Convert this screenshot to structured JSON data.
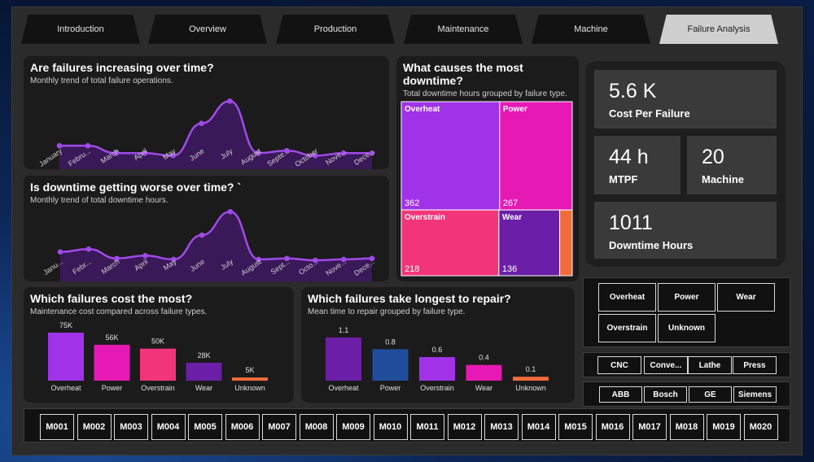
{
  "tabs": [
    "Introduction",
    "Overview",
    "Production",
    "Maintenance",
    "Machine",
    "Failure Analysis"
  ],
  "active_tab": "Failure Analysis",
  "failures_trend": {
    "title": "Are failures increasing over time?",
    "subtitle": "Monthly trend of total failure operations.",
    "tick_labels": [
      "January",
      "Febru...",
      "March",
      "April",
      "May",
      "June",
      "July",
      "August",
      "Septe...",
      "October",
      "Nove...",
      "Dece..."
    ]
  },
  "downtime_trend": {
    "title": "Is downtime getting worse over time? `",
    "subtitle": "Monthly trend of total downtime hours.",
    "tick_labels": [
      "Janu...",
      "Febr...",
      "March",
      "April",
      "May",
      "June",
      "July",
      "August",
      "Sept...",
      "Octo...",
      "Nove...",
      "Dece..."
    ]
  },
  "treemap": {
    "title": "What causes the most downtime?",
    "subtitle": "Total downtime hours grouped by failure type."
  },
  "cost_chart": {
    "title": "Which failures cost the most?",
    "subtitle": "Maintenance cost compared across failure types."
  },
  "repair_chart": {
    "title": "Which failures take longest to repair?",
    "subtitle": "Mean time to repair grouped by failure type."
  },
  "kpis": {
    "cost_per_failure": {
      "value": "5.6 K",
      "label": "Cost Per Failure"
    },
    "mtpf": {
      "value": "44 h",
      "label": "MTPF"
    },
    "machine": {
      "value": "20",
      "label": "Machine"
    },
    "downtime": {
      "value": "1011",
      "label": "Downtime Hours"
    }
  },
  "slicers": {
    "failure_types": [
      "Overheat",
      "Power",
      "Wear",
      "Overstrain",
      "Unknown"
    ],
    "machine_types": [
      "CNC",
      "Conve...",
      "Lathe",
      "Press"
    ],
    "brands": [
      "ABB",
      "Bosch",
      "GE",
      "Siemens"
    ],
    "machines": [
      "M001",
      "M002",
      "M003",
      "M004",
      "M005",
      "M006",
      "M007",
      "M008",
      "M009",
      "M010",
      "M011",
      "M012",
      "M013",
      "M014",
      "M015",
      "M016",
      "M017",
      "M018",
      "M019",
      "M020"
    ]
  },
  "colors": {
    "purple": "#a033e8",
    "magenta": "#e619b4",
    "pink": "#f2357a",
    "violet": "#6a1fa6",
    "orange": "#f26b3a",
    "blue": "#1f4d9c",
    "line": "#a04be8"
  },
  "chart_data": [
    {
      "type": "area",
      "x": [
        "January",
        "February",
        "March",
        "April",
        "May",
        "June",
        "July",
        "August",
        "September",
        "October",
        "November",
        "December"
      ],
      "series": [
        {
          "values": [
            17,
            17,
            14,
            14,
            13,
            26,
            35,
            14,
            15,
            13,
            14,
            14
          ]
        }
      ],
      "ylim": [
        0,
        40
      ],
      "grid": false
    },
    {
      "type": "area",
      "x": [
        "January",
        "February",
        "March",
        "April",
        "May",
        "June",
        "July",
        "August",
        "September",
        "October",
        "November",
        "December"
      ],
      "series": [
        {
          "values": [
            62,
            65,
            55,
            58,
            54,
            80,
            105,
            54,
            55,
            53,
            54,
            55
          ]
        }
      ],
      "ylim": [
        0,
        120
      ],
      "grid": false
    },
    {
      "type": "heatmap",
      "categories": [
        "Overheat",
        "Power",
        "Overstrain",
        "Wear",
        "Unknown"
      ],
      "values": [
        362,
        267,
        218,
        136,
        28
      ],
      "data_labels": [
        "362",
        "267",
        "218",
        "136",
        ""
      ]
    },
    {
      "type": "bar",
      "categories": [
        "Overheat",
        "Power",
        "Overstrain",
        "Wear",
        "Unknown"
      ],
      "values": [
        75,
        56,
        50,
        28,
        5
      ],
      "data_labels": [
        "75K",
        "56K",
        "50K",
        "28K",
        "5K"
      ],
      "ylim": [
        0,
        80
      ]
    },
    {
      "type": "bar",
      "categories": [
        "Overheat",
        "Power",
        "Overstrain",
        "Wear",
        "Unknown"
      ],
      "values": [
        1.1,
        0.8,
        0.6,
        0.4,
        0.1
      ],
      "data_labels": [
        "1.1",
        "0.8",
        "0.6",
        "0.4",
        "0.1"
      ],
      "ylim": [
        0,
        1.2
      ]
    }
  ]
}
